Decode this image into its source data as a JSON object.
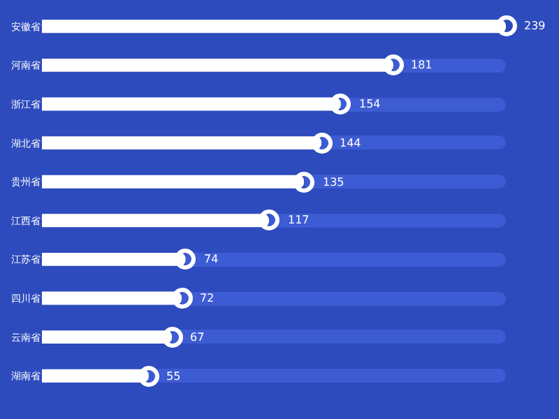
{
  "chart_data": {
    "type": "bar",
    "orientation": "horizontal",
    "categories": [
      "安徽省",
      "河南省",
      "浙江省",
      "湖北省",
      "贵州省",
      "江西省",
      "江苏省",
      "四川省",
      "云南省",
      "湖南省"
    ],
    "values": [
      239,
      181,
      154,
      144,
      135,
      117,
      74,
      72,
      67,
      55
    ],
    "color": "#ffffff",
    "marker": "circle",
    "data_labels": true
  }
}
